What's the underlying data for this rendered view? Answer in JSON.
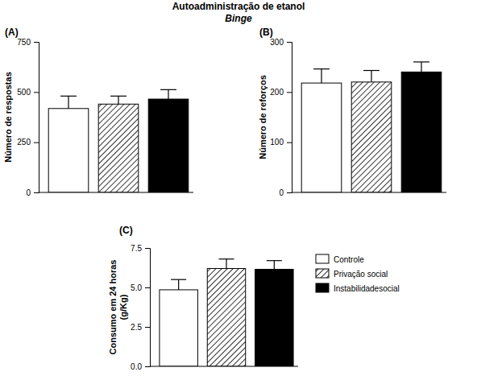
{
  "chart_data": [
    {
      "type": "bar",
      "title": "Autoadministração de etanol",
      "subtitle": "Binge",
      "annotation": "(A)",
      "ylabel": "Número de respostas",
      "ylim": [
        0,
        750
      ],
      "yticks": [
        0,
        250,
        500,
        750
      ],
      "series": [
        {
          "color": "#ffffff",
          "values": [
            418
          ],
          "errors": [
            62
          ]
        },
        {
          "color": "#333333",
          "line_style": "hatch",
          "values": [
            440
          ],
          "errors": [
            40
          ]
        },
        {
          "color": "#000000",
          "values": [
            465
          ],
          "errors": [
            47
          ]
        }
      ]
    },
    {
      "type": "bar",
      "annotation": "(B)",
      "ylabel": "Número de reforços",
      "ylim": [
        0,
        300
      ],
      "yticks": [
        0,
        100,
        200,
        300
      ],
      "series": [
        {
          "color": "#ffffff",
          "values": [
            218
          ],
          "errors": [
            28
          ]
        },
        {
          "color": "#333333",
          "line_style": "hatch",
          "values": [
            220
          ],
          "errors": [
            23
          ]
        },
        {
          "color": "#000000",
          "values": [
            240
          ],
          "errors": [
            20
          ]
        }
      ]
    },
    {
      "type": "bar",
      "annotation": "(C)",
      "ylabel": "Consumo em 24 horas\n(g/Kg)",
      "ylim": [
        0,
        7.5
      ],
      "yticks": [
        {
          "value": 0,
          "label": "0.0"
        },
        {
          "value": 2.5,
          "label": "2.5"
        },
        {
          "value": 5,
          "label": "5.0"
        },
        {
          "value": 7.5,
          "label": "7.5"
        }
      ],
      "legend": "right",
      "series": [
        {
          "name": "Controle",
          "color": "#ffffff",
          "values": [
            4.85
          ],
          "errors": [
            0.65
          ]
        },
        {
          "name": "Privação social",
          "color": "#333333",
          "line_style": "hatch",
          "values": [
            6.2
          ],
          "errors": [
            0.6
          ]
        },
        {
          "name": "Instabilidadesocial",
          "color": "#000000",
          "values": [
            6.15
          ],
          "errors": [
            0.55
          ]
        }
      ]
    }
  ]
}
